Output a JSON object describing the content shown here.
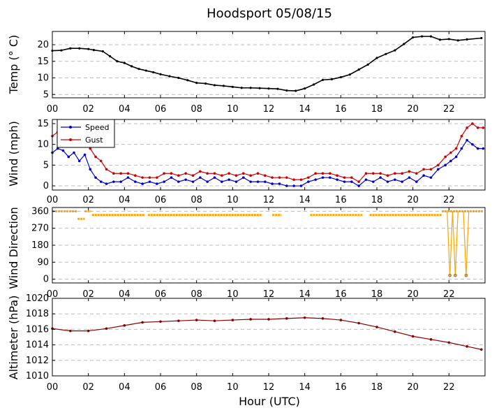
{
  "figure": {
    "title": "Hoodsport 05/08/15",
    "xlabel": "Hour (UTC)"
  },
  "colors": {
    "temp": "#000000",
    "speed": "#0000cc",
    "gust": "#cc0000",
    "direction": "#ffa500",
    "altimeter": "#8b0000",
    "grid": "#bbbbbb"
  },
  "chart_data": [
    {
      "id": "temp",
      "type": "line",
      "ylabel": "Temp (° C)",
      "xlim": [
        0,
        24
      ],
      "ylim": [
        4,
        24
      ],
      "yticks": [
        5,
        10,
        15,
        20
      ],
      "xticks": [
        0,
        2,
        4,
        6,
        8,
        10,
        12,
        14,
        16,
        18,
        20,
        22
      ],
      "xticklabels": [
        "00",
        "02",
        "04",
        "06",
        "08",
        "10",
        "12",
        "14",
        "16",
        "18",
        "20",
        "22"
      ],
      "grid": true,
      "series": [
        {
          "key": "temp",
          "x": [
            0,
            0.5,
            1,
            1.5,
            2,
            2.3,
            2.8,
            3.2,
            3.6,
            4,
            4.4,
            4.8,
            5.2,
            5.6,
            6,
            6.5,
            7,
            7.5,
            8,
            8.5,
            9,
            9.5,
            10,
            10.5,
            11,
            11.5,
            12,
            12.5,
            13,
            13.5,
            14,
            14.5,
            15,
            15.5,
            16,
            16.5,
            17,
            17.5,
            18,
            18.5,
            19,
            19.5,
            20,
            20.5,
            21,
            21.5,
            22,
            22.5,
            23,
            23.8
          ],
          "y": [
            18.2,
            18.3,
            18.9,
            18.9,
            18.7,
            18.4,
            18,
            16.5,
            15,
            14.5,
            13.5,
            12.7,
            12.2,
            11.7,
            11.1,
            10.5,
            10,
            9.3,
            8.5,
            8.3,
            7.8,
            7.6,
            7.3,
            7,
            7,
            6.9,
            6.8,
            6.7,
            6.2,
            6.1,
            6.8,
            8,
            9.4,
            9.6,
            10.2,
            11,
            12.5,
            14,
            16,
            17.2,
            18.3,
            20.2,
            22.2,
            22.5,
            22.5,
            21.5,
            21.7,
            21.3,
            21.6,
            22
          ]
        }
      ]
    },
    {
      "id": "wind",
      "type": "line",
      "ylabel": "Wind (mph)",
      "xlim": [
        0,
        24
      ],
      "ylim": [
        -1,
        16
      ],
      "yticks": [
        0,
        5,
        10,
        15
      ],
      "xticks": [
        0,
        2,
        4,
        6,
        8,
        10,
        12,
        14,
        16,
        18,
        20,
        22
      ],
      "xticklabels": [
        "00",
        "02",
        "04",
        "06",
        "08",
        "10",
        "12",
        "14",
        "16",
        "18",
        "20",
        "22"
      ],
      "grid": true,
      "legend": "upper-left",
      "series": [
        {
          "key": "speed",
          "name": "Speed",
          "x": [
            0,
            0.3,
            0.6,
            0.9,
            1.2,
            1.5,
            1.8,
            2.1,
            2.4,
            2.7,
            3,
            3.4,
            3.8,
            4.2,
            4.6,
            5,
            5.4,
            5.8,
            6.2,
            6.6,
            7,
            7.4,
            7.8,
            8.2,
            8.6,
            9,
            9.4,
            9.8,
            10.2,
            10.6,
            11,
            11.4,
            11.8,
            12.2,
            12.6,
            13,
            13.4,
            13.8,
            14.2,
            14.6,
            15,
            15.4,
            15.8,
            16.2,
            16.6,
            17,
            17.4,
            17.8,
            18.2,
            18.6,
            19,
            19.4,
            19.8,
            20.2,
            20.6,
            21,
            21.4,
            21.8,
            22.1,
            22.4,
            22.7,
            23,
            23.3,
            23.6,
            23.9
          ],
          "y": [
            8,
            9,
            8.5,
            7,
            8,
            6,
            7.5,
            4,
            2,
            1,
            0.5,
            1,
            1,
            2,
            1,
            0.5,
            1,
            0.5,
            1,
            2,
            1,
            1.5,
            1,
            2,
            1,
            2,
            1,
            1.5,
            1,
            2,
            1,
            1,
            1,
            0.5,
            0.5,
            0,
            0,
            0,
            1,
            1.5,
            2,
            2,
            1.5,
            1,
            1,
            0,
            1.5,
            1,
            2,
            1,
            1.5,
            1,
            2,
            1,
            2.5,
            2,
            4,
            5,
            6,
            7,
            9,
            11,
            10,
            9,
            9
          ]
        },
        {
          "key": "gust",
          "name": "Gust",
          "x": [
            0,
            0.3,
            0.6,
            0.9,
            1.2,
            1.5,
            1.8,
            2.1,
            2.4,
            2.7,
            3,
            3.4,
            3.8,
            4.2,
            4.6,
            5,
            5.4,
            5.8,
            6.2,
            6.6,
            7,
            7.4,
            7.8,
            8.2,
            8.6,
            9,
            9.4,
            9.8,
            10.2,
            10.6,
            11,
            11.4,
            11.8,
            12.2,
            12.6,
            13,
            13.4,
            13.8,
            14.2,
            14.6,
            15,
            15.4,
            15.8,
            16.2,
            16.6,
            17,
            17.4,
            17.8,
            18.2,
            18.6,
            19,
            19.4,
            19.8,
            20.2,
            20.6,
            21,
            21.4,
            21.8,
            22.1,
            22.4,
            22.7,
            23,
            23.3,
            23.6,
            23.9
          ],
          "y": [
            12,
            13,
            12,
            11,
            11,
            10,
            12,
            9,
            7,
            6,
            4,
            3,
            3,
            3,
            2.5,
            2,
            2,
            2,
            3,
            3,
            2.5,
            3,
            2.5,
            3.5,
            3,
            3,
            2.5,
            3,
            2.5,
            3,
            2.5,
            3,
            2.5,
            2,
            2,
            2,
            1.5,
            1.5,
            2,
            3,
            3,
            3,
            2.5,
            2,
            2,
            1,
            3,
            3,
            3,
            2.5,
            3,
            3,
            3.5,
            3,
            4,
            4,
            5,
            7,
            8,
            9,
            12,
            14,
            15,
            14,
            14
          ]
        }
      ]
    },
    {
      "id": "direction",
      "type": "scatter",
      "ylabel": "Wind Direction",
      "xlim": [
        0,
        24
      ],
      "ylim": [
        -20,
        380
      ],
      "yticks": [
        0,
        90,
        180,
        270,
        360
      ],
      "xticks": [
        0,
        2,
        4,
        6,
        8,
        10,
        12,
        14,
        16,
        18,
        20,
        22
      ],
      "xticklabels": [
        "00",
        "02",
        "04",
        "06",
        "08",
        "10",
        "12",
        "14",
        "16",
        "18",
        "20",
        "22"
      ],
      "grid": true,
      "series": [
        {
          "key": "direction",
          "segments": [
            {
              "x0": 0,
              "x1": 1.4,
              "y": 360
            },
            {
              "x0": 1.4,
              "x1": 1.8,
              "y": 320
            },
            {
              "x0": 1.8,
              "x1": 2.15,
              "y": 360
            },
            {
              "x0": 2.2,
              "x1": 5.1,
              "y": 340
            },
            {
              "x0": 5.3,
              "x1": 11.6,
              "y": 340
            },
            {
              "x0": 12.2,
              "x1": 12.7,
              "y": 340
            },
            {
              "x0": 14.3,
              "x1": 17.2,
              "y": 340
            },
            {
              "x0": 17.6,
              "x1": 21.6,
              "y": 340
            },
            {
              "x0": 21.6,
              "x1": 23.9,
              "y": 360
            }
          ],
          "spikes": [
            {
              "x": 22.05,
              "y": 20
            },
            {
              "x": 22.35,
              "y": 20
            },
            {
              "x": 22.95,
              "y": 20
            }
          ]
        }
      ]
    },
    {
      "id": "altimeter",
      "type": "line",
      "ylabel": "Altimeter (hPa)",
      "xlim": [
        0,
        24
      ],
      "ylim": [
        1010,
        1020
      ],
      "yticks": [
        1010,
        1012,
        1014,
        1016,
        1018,
        1020
      ],
      "xticks": [
        0,
        2,
        4,
        6,
        8,
        10,
        12,
        14,
        16,
        18,
        20,
        22
      ],
      "xticklabels": [
        "00",
        "02",
        "04",
        "06",
        "08",
        "10",
        "12",
        "14",
        "16",
        "18",
        "20",
        "22"
      ],
      "grid": true,
      "series": [
        {
          "key": "altimeter",
          "x": [
            0,
            1,
            2,
            3,
            4,
            5,
            6,
            7,
            8,
            9,
            10,
            11,
            12,
            13,
            14,
            15,
            16,
            17,
            18,
            19,
            20,
            21,
            22,
            23,
            23.8
          ],
          "y": [
            1016.1,
            1015.8,
            1015.8,
            1016.1,
            1016.5,
            1016.9,
            1017,
            1017.1,
            1017.2,
            1017.1,
            1017.2,
            1017.3,
            1017.3,
            1017.4,
            1017.5,
            1017.4,
            1017.2,
            1016.8,
            1016.3,
            1015.7,
            1015.1,
            1014.7,
            1014.3,
            1013.8,
            1013.4
          ]
        }
      ]
    }
  ]
}
